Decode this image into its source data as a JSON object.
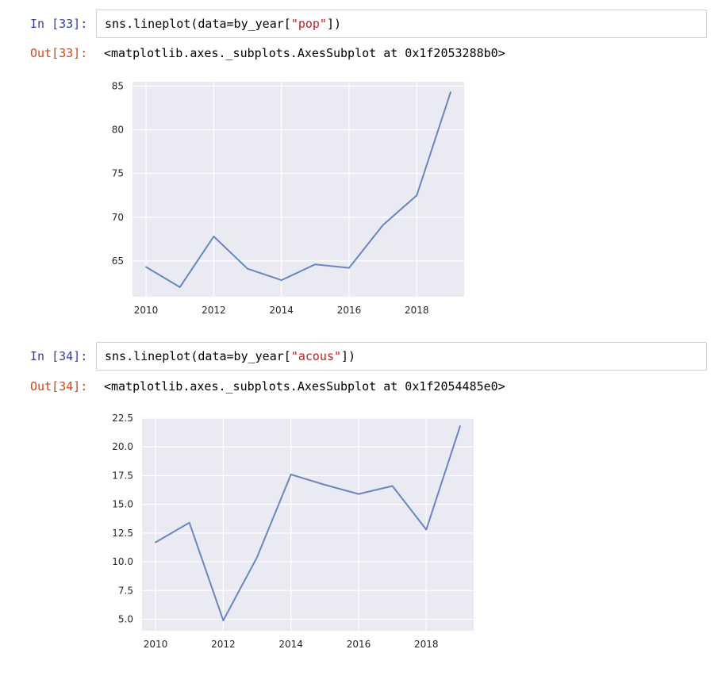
{
  "cells": [
    {
      "in_prompt": "In [33]:",
      "code_prefix": "sns.lineplot(data=by_year[",
      "code_string": "\"pop\"",
      "code_suffix": "])",
      "out_prompt": "Out[33]:",
      "output_text": "<matplotlib.axes._subplots.AxesSubplot at 0x1f2053288b0>"
    },
    {
      "in_prompt": "In [34]:",
      "code_prefix": "sns.lineplot(data=by_year[",
      "code_string": "\"acous\"",
      "code_suffix": "])",
      "out_prompt": "Out[34]:",
      "output_text": "<matplotlib.axes._subplots.AxesSubplot at 0x1f2054485e0>"
    }
  ],
  "chart_data": [
    {
      "type": "line",
      "x": [
        2010,
        2011,
        2012,
        2013,
        2014,
        2015,
        2016,
        2017,
        2018,
        2019
      ],
      "series": [
        {
          "values": [
            64.3,
            62.0,
            67.8,
            64.1,
            62.8,
            64.6,
            64.2,
            69.1,
            72.5,
            84.3
          ]
        }
      ],
      "xticks": [
        2010,
        2012,
        2014,
        2016,
        2018
      ],
      "yticks": [
        65,
        70,
        75,
        80,
        85
      ],
      "xtick_labels": [
        "2010",
        "2012",
        "2014",
        "2016",
        "2018"
      ],
      "ytick_labels": [
        "65",
        "70",
        "75",
        "80",
        "85"
      ],
      "xlim": [
        2009.6,
        2019.4
      ],
      "ylim": [
        60.9,
        85.5
      ],
      "grid": true,
      "line_color": "#6a86bd",
      "background_color": "#eaeaf2",
      "title": "",
      "xlabel": "",
      "ylabel": ""
    },
    {
      "type": "line",
      "x": [
        2010,
        2011,
        2012,
        2013,
        2014,
        2015,
        2016,
        2017,
        2018,
        2019
      ],
      "series": [
        {
          "values": [
            11.7,
            13.4,
            4.9,
            10.4,
            17.6,
            16.7,
            15.9,
            16.6,
            12.8,
            21.8
          ]
        }
      ],
      "xticks": [
        2010,
        2012,
        2014,
        2016,
        2018
      ],
      "yticks": [
        5.0,
        7.5,
        10.0,
        12.5,
        15.0,
        17.5,
        20.0,
        22.5
      ],
      "xtick_labels": [
        "2010",
        "2012",
        "2014",
        "2016",
        "2018"
      ],
      "ytick_labels": [
        "5.0",
        "7.5",
        "10.0",
        "12.5",
        "15.0",
        "17.5",
        "20.0",
        "22.5"
      ],
      "xlim": [
        2009.6,
        2019.4
      ],
      "ylim": [
        4.0,
        22.5
      ],
      "grid": true,
      "line_color": "#6a86bd",
      "background_color": "#eaeaf2",
      "title": "",
      "xlabel": "",
      "ylabel": ""
    }
  ]
}
